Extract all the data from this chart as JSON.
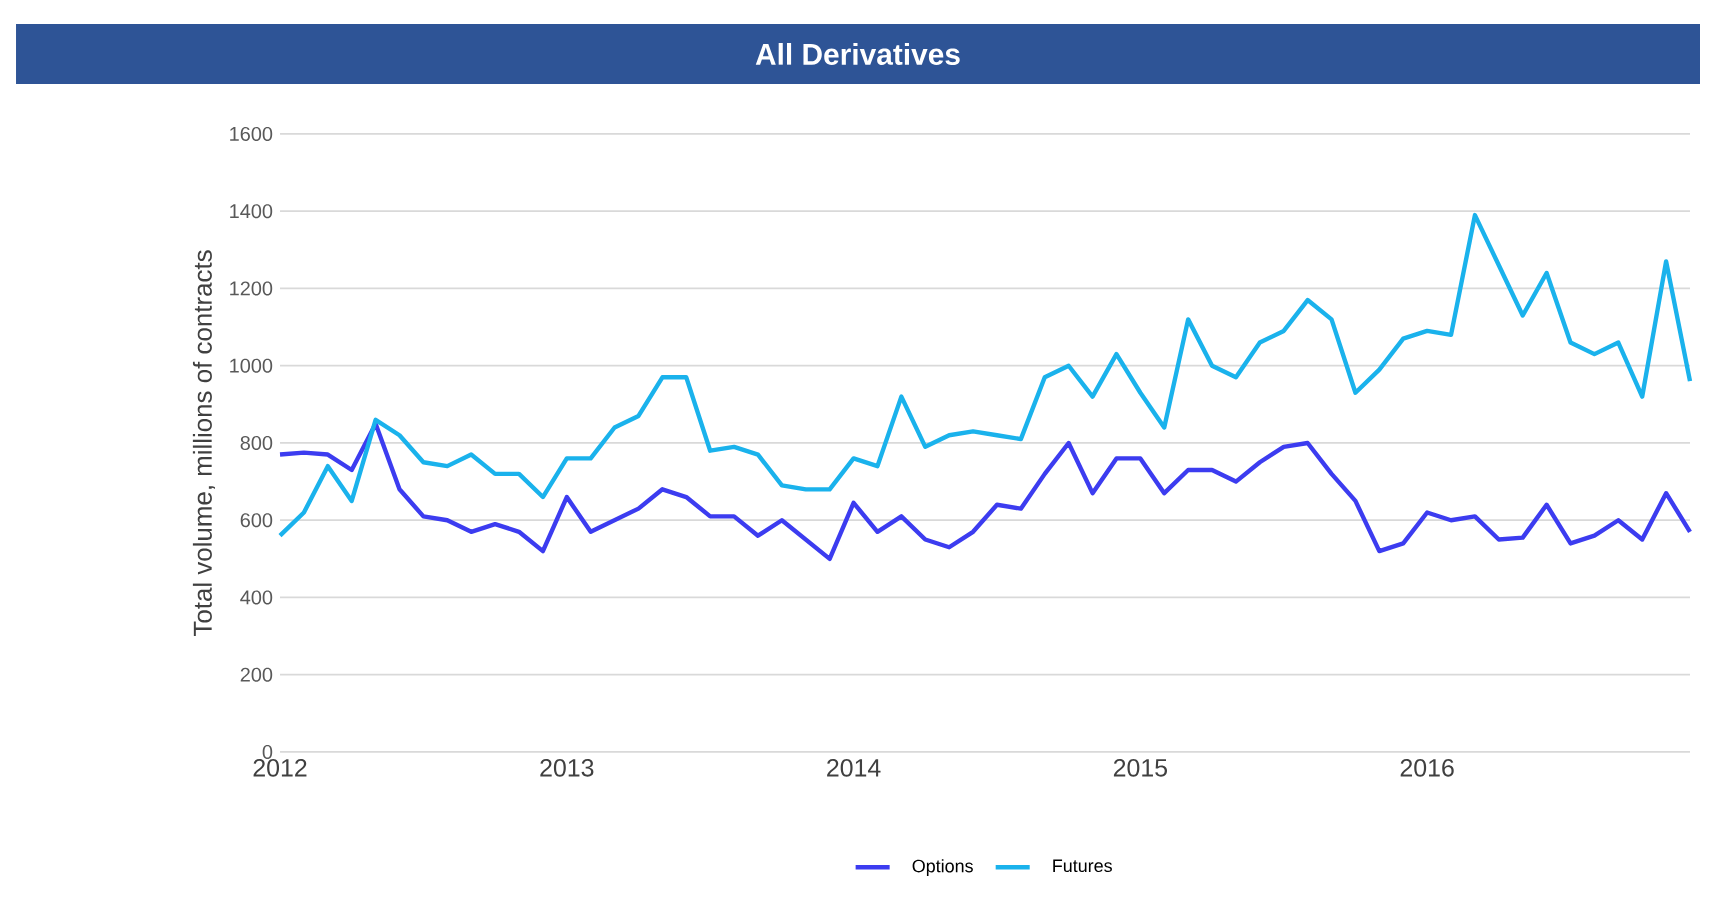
{
  "chart_data": {
    "type": "line",
    "title": "All Derivatives",
    "ylabel": "Total volume, millions of contracts",
    "x": [
      "2012-01",
      "2012-02",
      "2012-03",
      "2012-04",
      "2012-05",
      "2012-06",
      "2012-07",
      "2012-08",
      "2012-09",
      "2012-10",
      "2012-11",
      "2012-12",
      "2013-01",
      "2013-02",
      "2013-03",
      "2013-04",
      "2013-05",
      "2013-06",
      "2013-07",
      "2013-08",
      "2013-09",
      "2013-10",
      "2013-11",
      "2013-12",
      "2014-01",
      "2014-02",
      "2014-03",
      "2014-04",
      "2014-05",
      "2014-06",
      "2014-07",
      "2014-08",
      "2014-09",
      "2014-10",
      "2014-11",
      "2014-12",
      "2015-01",
      "2015-02",
      "2015-03",
      "2015-04",
      "2015-05",
      "2015-06",
      "2015-07",
      "2015-08",
      "2015-09",
      "2015-10",
      "2015-11",
      "2015-12",
      "2016-01",
      "2016-02",
      "2016-03",
      "2016-04",
      "2016-05",
      "2016-06",
      "2016-07",
      "2016-08",
      "2016-09",
      "2016-10",
      "2016-11",
      "2016-12"
    ],
    "series": [
      {
        "name": "Options",
        "color": "#3c3cf0",
        "values": [
          770,
          775,
          770,
          730,
          850,
          680,
          610,
          600,
          570,
          590,
          570,
          520,
          660,
          570,
          600,
          630,
          680,
          660,
          610,
          610,
          560,
          600,
          550,
          500,
          645,
          570,
          610,
          550,
          530,
          570,
          640,
          630,
          720,
          800,
          670,
          760,
          760,
          670,
          730,
          730,
          700,
          750,
          790,
          800,
          720,
          650,
          520,
          540,
          620,
          600,
          610,
          550,
          555,
          640,
          540,
          560,
          600,
          550,
          670,
          570
        ]
      },
      {
        "name": "Futures",
        "color": "#1ab2ec",
        "values": [
          560,
          620,
          740,
          650,
          860,
          820,
          750,
          740,
          770,
          720,
          720,
          660,
          760,
          760,
          840,
          870,
          970,
          970,
          780,
          790,
          770,
          690,
          680,
          680,
          760,
          740,
          920,
          790,
          820,
          830,
          820,
          810,
          970,
          1000,
          920,
          1030,
          930,
          840,
          1120,
          1000,
          970,
          1060,
          1090,
          1170,
          1120,
          930,
          990,
          1070,
          1090,
          1080,
          1390,
          1260,
          1130,
          1240,
          1060,
          1030,
          1060,
          920,
          1270,
          960
        ]
      }
    ],
    "xlim": [
      "2012-01",
      "2016-12"
    ],
    "xticks": [
      {
        "value": "2012-01",
        "label": "2012"
      },
      {
        "value": "2013-01",
        "label": "2013"
      },
      {
        "value": "2014-01",
        "label": "2014"
      },
      {
        "value": "2015-01",
        "label": "2015"
      },
      {
        "value": "2016-01",
        "label": "2016"
      }
    ],
    "ylim": [
      0,
      1600
    ],
    "yticks": [
      0,
      200,
      400,
      600,
      800,
      1000,
      1200,
      1400,
      1600
    ],
    "grid": "y",
    "legend": "bottom",
    "line_style": "solid"
  }
}
